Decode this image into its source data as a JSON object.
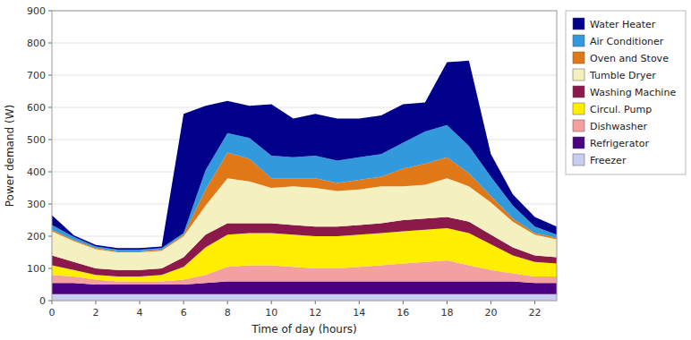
{
  "chart_data": {
    "type": "area",
    "stacked": true,
    "xlabel": "Time of day (hours)",
    "ylabel": "Power demand (W)",
    "xlim": [
      0,
      23
    ],
    "ylim": [
      0,
      900
    ],
    "xticks": [
      0,
      2,
      4,
      6,
      8,
      10,
      12,
      14,
      16,
      18,
      20,
      22
    ],
    "yticks": [
      0,
      100,
      200,
      300,
      400,
      500,
      600,
      700,
      800,
      900
    ],
    "grid": true,
    "legend": "right",
    "x": [
      0,
      1,
      2,
      3,
      4,
      5,
      6,
      7,
      8,
      9,
      10,
      11,
      12,
      13,
      14,
      15,
      16,
      17,
      18,
      19,
      20,
      21,
      22,
      23
    ],
    "series": [
      {
        "name": "Freezer",
        "color": "#c8cef0",
        "values": [
          20,
          20,
          20,
          20,
          20,
          20,
          20,
          20,
          20,
          20,
          20,
          20,
          20,
          20,
          20,
          20,
          20,
          20,
          20,
          20,
          20,
          20,
          20,
          20
        ]
      },
      {
        "name": "Refrigerator",
        "color": "#4b0082",
        "values": [
          35,
          35,
          30,
          30,
          30,
          30,
          30,
          35,
          40,
          40,
          40,
          40,
          40,
          40,
          40,
          40,
          40,
          40,
          40,
          40,
          40,
          40,
          35,
          35
        ]
      },
      {
        "name": "Dishwasher",
        "color": "#f4a0a0",
        "values": [
          25,
          20,
          15,
          10,
          10,
          10,
          15,
          25,
          45,
          50,
          50,
          45,
          40,
          40,
          45,
          50,
          55,
          60,
          65,
          50,
          35,
          25,
          20,
          20
        ]
      },
      {
        "name": "Circul. Pump",
        "color": "#ffee00",
        "values": [
          30,
          20,
          15,
          15,
          15,
          20,
          40,
          85,
          100,
          100,
          100,
          100,
          100,
          100,
          100,
          100,
          100,
          100,
          100,
          100,
          80,
          55,
          45,
          40
        ]
      },
      {
        "name": "Washing Machine",
        "color": "#8b1a4a",
        "values": [
          30,
          25,
          20,
          20,
          20,
          20,
          30,
          40,
          35,
          30,
          30,
          30,
          30,
          30,
          30,
          30,
          35,
          35,
          35,
          35,
          30,
          25,
          20,
          20
        ]
      },
      {
        "name": "Tumble Dryer",
        "color": "#f5f0c0",
        "values": [
          75,
          65,
          60,
          55,
          55,
          55,
          65,
          90,
          140,
          130,
          110,
          120,
          120,
          110,
          110,
          115,
          105,
          105,
          120,
          110,
          100,
          80,
          65,
          55
        ]
      },
      {
        "name": "Oven and Stove",
        "color": "#e07818",
        "values": [
          5,
          3,
          3,
          3,
          3,
          3,
          5,
          50,
          80,
          70,
          30,
          25,
          30,
          25,
          30,
          30,
          55,
          65,
          65,
          40,
          20,
          10,
          5,
          5
        ]
      },
      {
        "name": "Air Conditioner",
        "color": "#3399dd",
        "values": [
          15,
          10,
          5,
          5,
          5,
          5,
          5,
          60,
          60,
          65,
          70,
          65,
          70,
          70,
          70,
          70,
          80,
          100,
          100,
          85,
          60,
          40,
          20,
          10
        ]
      },
      {
        "name": "Water Heater",
        "color": "#00008b",
        "values": [
          30,
          5,
          5,
          5,
          5,
          5,
          370,
          200,
          100,
          100,
          160,
          120,
          130,
          130,
          120,
          120,
          120,
          90,
          195,
          265,
          70,
          35,
          30,
          25
        ]
      }
    ]
  }
}
